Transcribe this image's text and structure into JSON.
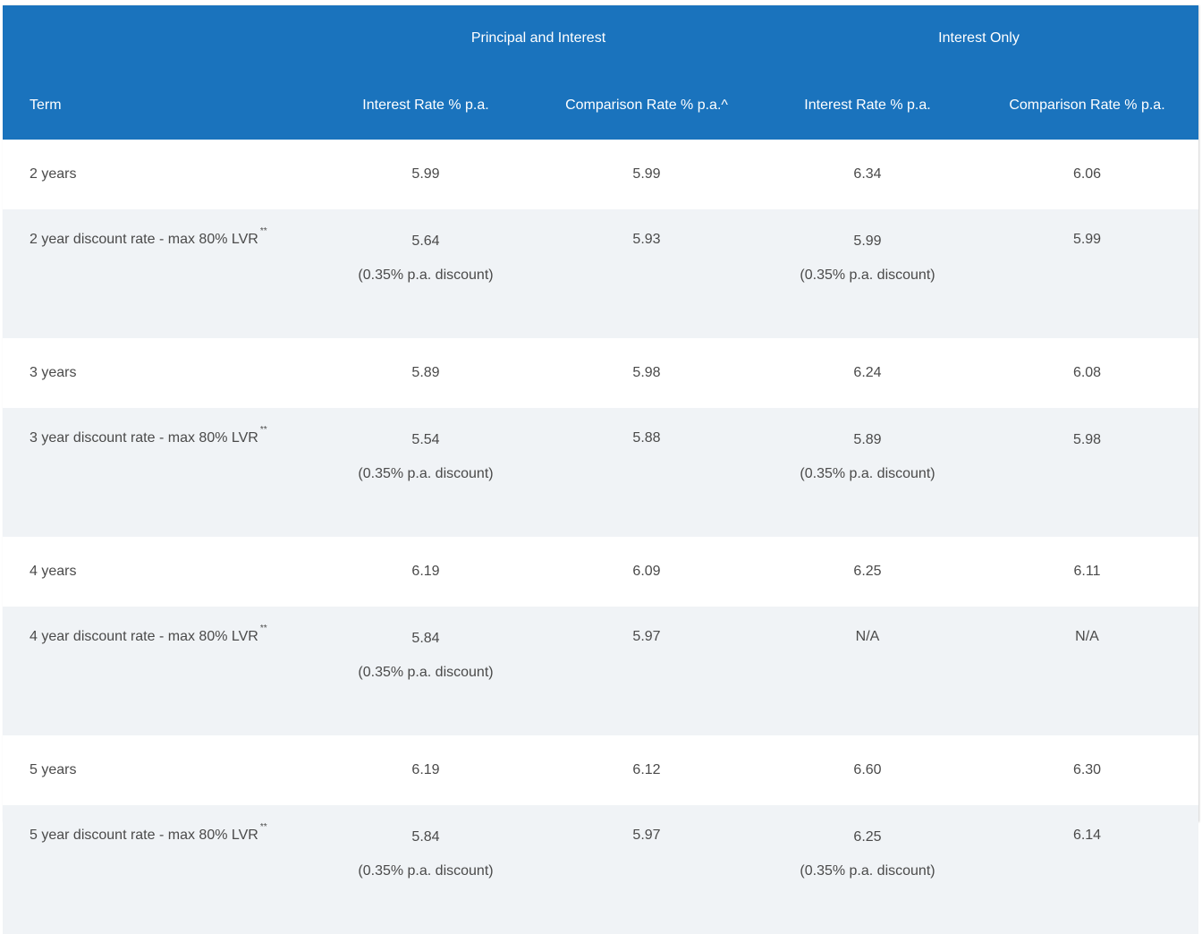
{
  "table": {
    "group_headers": {
      "principal_interest": "Principal and Interest",
      "interest_only": "Interest Only"
    },
    "column_headers": {
      "term": "Term",
      "pi_rate": "Interest Rate % p.a.",
      "pi_comparison": "Comparison Rate % p.a.^",
      "io_rate": "Interest Rate % p.a.",
      "io_comparison": "Comparison Rate % p.a."
    },
    "rows": [
      {
        "term": "2 years",
        "stars": "",
        "pi_rate": "5.99",
        "pi_discount": "",
        "pi_comparison": "5.99",
        "io_rate": "6.34",
        "io_discount": "",
        "io_comparison": "6.06"
      },
      {
        "term": "2 year discount rate - max 80% LVR",
        "stars": "**",
        "pi_rate": "5.64",
        "pi_discount": "(0.35% p.a. discount)",
        "pi_comparison": "5.93",
        "io_rate": "5.99",
        "io_discount": "(0.35% p.a. discount)",
        "io_comparison": "5.99"
      },
      {
        "term": "3 years",
        "stars": "",
        "pi_rate": "5.89",
        "pi_discount": "",
        "pi_comparison": "5.98",
        "io_rate": "6.24",
        "io_discount": "",
        "io_comparison": "6.08"
      },
      {
        "term": "3 year discount rate - max 80% LVR",
        "stars": "**",
        "pi_rate": "5.54",
        "pi_discount": "(0.35% p.a. discount)",
        "pi_comparison": "5.88",
        "io_rate": "5.89",
        "io_discount": "(0.35% p.a. discount)",
        "io_comparison": "5.98"
      },
      {
        "term": "4 years",
        "stars": "",
        "pi_rate": "6.19",
        "pi_discount": "",
        "pi_comparison": "6.09",
        "io_rate": "6.25",
        "io_discount": "",
        "io_comparison": "6.11"
      },
      {
        "term": "4 year discount rate - max 80% LVR",
        "stars": "**",
        "pi_rate": "5.84",
        "pi_discount": "(0.35% p.a. discount)",
        "pi_comparison": "5.97",
        "io_rate": "N/A",
        "io_discount": "",
        "io_comparison": "N/A"
      },
      {
        "term": "5 years",
        "stars": "",
        "pi_rate": "6.19",
        "pi_discount": "",
        "pi_comparison": "6.12",
        "io_rate": "6.60",
        "io_discount": "",
        "io_comparison": "6.30"
      },
      {
        "term": "5 year discount rate - max 80% LVR",
        "stars": "**",
        "pi_rate": "5.84",
        "pi_discount": "(0.35% p.a. discount)",
        "pi_comparison": "5.97",
        "io_rate": "6.25",
        "io_discount": "(0.35% p.a. discount)",
        "io_comparison": "6.14"
      }
    ]
  },
  "colors": {
    "header_bg": "#1a73bd",
    "header_text": "#ffffff",
    "stripe_bg": "#f0f3f6",
    "body_text": "#4a4a4a"
  }
}
